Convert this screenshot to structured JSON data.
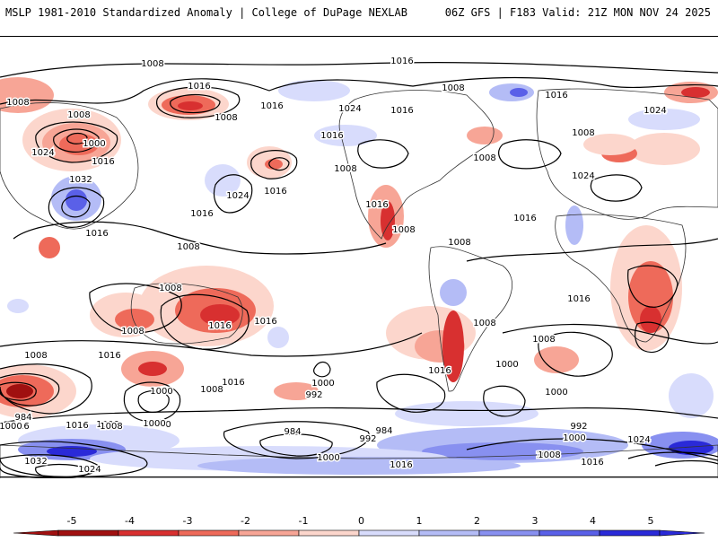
{
  "header": {
    "title": "MSLP 1981-2010 Standardized Anomaly | College of DuPage NEXLAB",
    "run_info": "06Z GFS | F183 Valid: 21Z MON NOV 24 2025"
  },
  "colors": {
    "neg5": "#a01010",
    "neg4": "#d83030",
    "neg3": "#ee6a5a",
    "neg2": "#f7a596",
    "neg1": "#fcd6cc",
    "zero": "#ffffff",
    "pos1": "#d8dcfc",
    "pos2": "#b4bcf6",
    "pos3": "#8890f0",
    "pos4": "#5a60e8",
    "pos5": "#2a2ad8",
    "contour": "#000000",
    "coast": "#333333"
  },
  "colorbar": {
    "ticks": [
      "-5",
      "-4",
      "-3",
      "-2",
      "-1",
      "0",
      "1",
      "2",
      "3",
      "4",
      "5"
    ]
  },
  "isobar_labels": [
    "1008",
    "1016",
    "1008",
    "1008",
    "1016",
    "1008",
    "1016",
    "1024",
    "1008",
    "1016",
    "1016",
    "1024",
    "1008",
    "1000",
    "1016",
    "1024",
    "1032",
    "1016",
    "1016",
    "1024",
    "1016",
    "1016",
    "1008",
    "1008",
    "1016",
    "1024",
    "1016",
    "1008",
    "1008",
    "1008",
    "1016",
    "1008",
    "1008",
    "1008",
    "1016",
    "1008",
    "1016",
    "1016",
    "1016",
    "1000",
    "1008",
    "1016",
    "1000",
    "1008",
    "1016",
    "1000",
    "992",
    "1000",
    "984",
    "984",
    "992",
    "1000",
    "1016",
    "1008",
    "1000",
    "984",
    "1000",
    "1008",
    "1032",
    "1024",
    "1008",
    "1000",
    "1016",
    "992",
    "1000",
    "1024",
    "1008",
    "1016"
  ]
}
